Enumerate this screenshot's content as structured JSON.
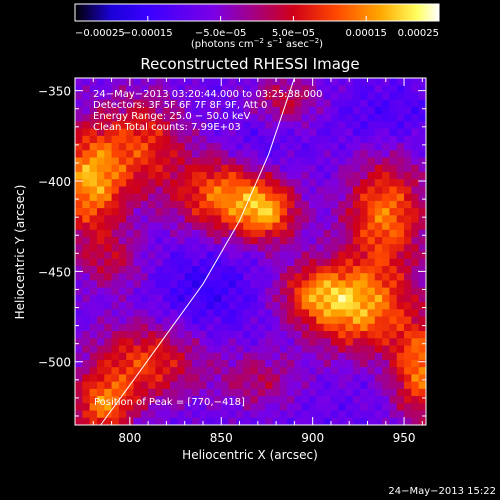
{
  "chart_data": {
    "type": "heatmap",
    "title": "Reconstructed RHESSI Image",
    "xlabel": "Heliocentric X (arcsec)",
    "ylabel": "Heliocentric Y (arcsec)",
    "xlim": [
      770,
      962
    ],
    "ylim": [
      -535,
      -343
    ],
    "x_ticks": [
      800,
      850,
      900,
      950
    ],
    "y_ticks": [
      -350,
      -400,
      -450,
      -500
    ],
    "x_tick_labels": [
      "800",
      "850",
      "900",
      "950"
    ],
    "y_tick_labels": [
      "−350",
      "−400",
      "−450",
      "−500"
    ],
    "colorbar": {
      "vmin": -0.00025,
      "vmax": 0.00025,
      "tick_values": [
        -0.00025,
        -0.00015,
        -5e-05,
        5e-05,
        0.00015,
        0.00025
      ],
      "tick_labels": [
        "−0.00025",
        "−0.00015",
        "−5.0e−05",
        "5.0e−05",
        "0.00015",
        "0.00025"
      ],
      "unit_main": "(photons cm",
      "unit_exp1": "−2",
      "unit_mid": " s",
      "unit_exp2": "−1",
      "unit_tail": " asec",
      "unit_exp3": "−2",
      "unit_close": ")"
    },
    "annotations": {
      "time_range": "24−May−2013 03:20:44.000 to 03:25:38.000",
      "detectors": "Detectors: 3F 5F 6F 7F 8F 9F, Att 0",
      "energy": "Energy Range: 25.0 − 50.0 keV",
      "clean": "Clean    Total counts: 7.99E+03",
      "peak": "Position of Peak = [770,−418]"
    },
    "limb_curve": [
      [
        784,
        -535
      ],
      [
        800,
        -513
      ],
      [
        820,
        -485
      ],
      [
        840,
        -457
      ],
      [
        860,
        -422
      ],
      [
        876,
        -385
      ],
      [
        890,
        -343
      ]
    ],
    "blobs": [
      {
        "x": 778,
        "y": -400,
        "sx": 14,
        "sy": 22,
        "a": 0.00025
      },
      {
        "x": 808,
        "y": -378,
        "sx": 16,
        "sy": 20,
        "a": 0.00016
      },
      {
        "x": 790,
        "y": -445,
        "sx": 14,
        "sy": 12,
        "a": 0.0001
      },
      {
        "x": 852,
        "y": -408,
        "sx": 20,
        "sy": 16,
        "a": 0.00022
      },
      {
        "x": 876,
        "y": -418,
        "sx": 12,
        "sy": 12,
        "a": 0.00018
      },
      {
        "x": 940,
        "y": -418,
        "sx": 16,
        "sy": 22,
        "a": 0.00022
      },
      {
        "x": 925,
        "y": -470,
        "sx": 20,
        "sy": 18,
        "a": 0.00024
      },
      {
        "x": 900,
        "y": -462,
        "sx": 14,
        "sy": 12,
        "a": 0.00015
      },
      {
        "x": 960,
        "y": -505,
        "sx": 12,
        "sy": 20,
        "a": 0.00022
      },
      {
        "x": 808,
        "y": -500,
        "sx": 22,
        "sy": 16,
        "a": 0.00018
      },
      {
        "x": 785,
        "y": -525,
        "sx": 12,
        "sy": 12,
        "a": 0.0002
      },
      {
        "x": 870,
        "y": -510,
        "sx": 16,
        "sy": 12,
        "a": 0.0001
      },
      {
        "x": 885,
        "y": -355,
        "sx": 14,
        "sy": 10,
        "a": 0.00012
      },
      {
        "x": 940,
        "y": -365,
        "sx": 20,
        "sy": 12,
        "a": -4e-05
      },
      {
        "x": 840,
        "y": -460,
        "sx": 20,
        "sy": 18,
        "a": -6e-05
      },
      {
        "x": 870,
        "y": -385,
        "sx": 12,
        "sy": 12,
        "a": -5e-05
      }
    ],
    "colormap": [
      "#000000",
      "#1c00d8",
      "#3a00ff",
      "#7a00e6",
      "#a0008c",
      "#d00018",
      "#ff4a00",
      "#ffa800",
      "#ffff60",
      "#ffffff"
    ],
    "colormap_stops": [
      0.0,
      0.1,
      0.2,
      0.38,
      0.48,
      0.6,
      0.72,
      0.84,
      0.94,
      1.0
    ]
  },
  "footer": {
    "timestamp": "24−May−2013 15:22"
  }
}
